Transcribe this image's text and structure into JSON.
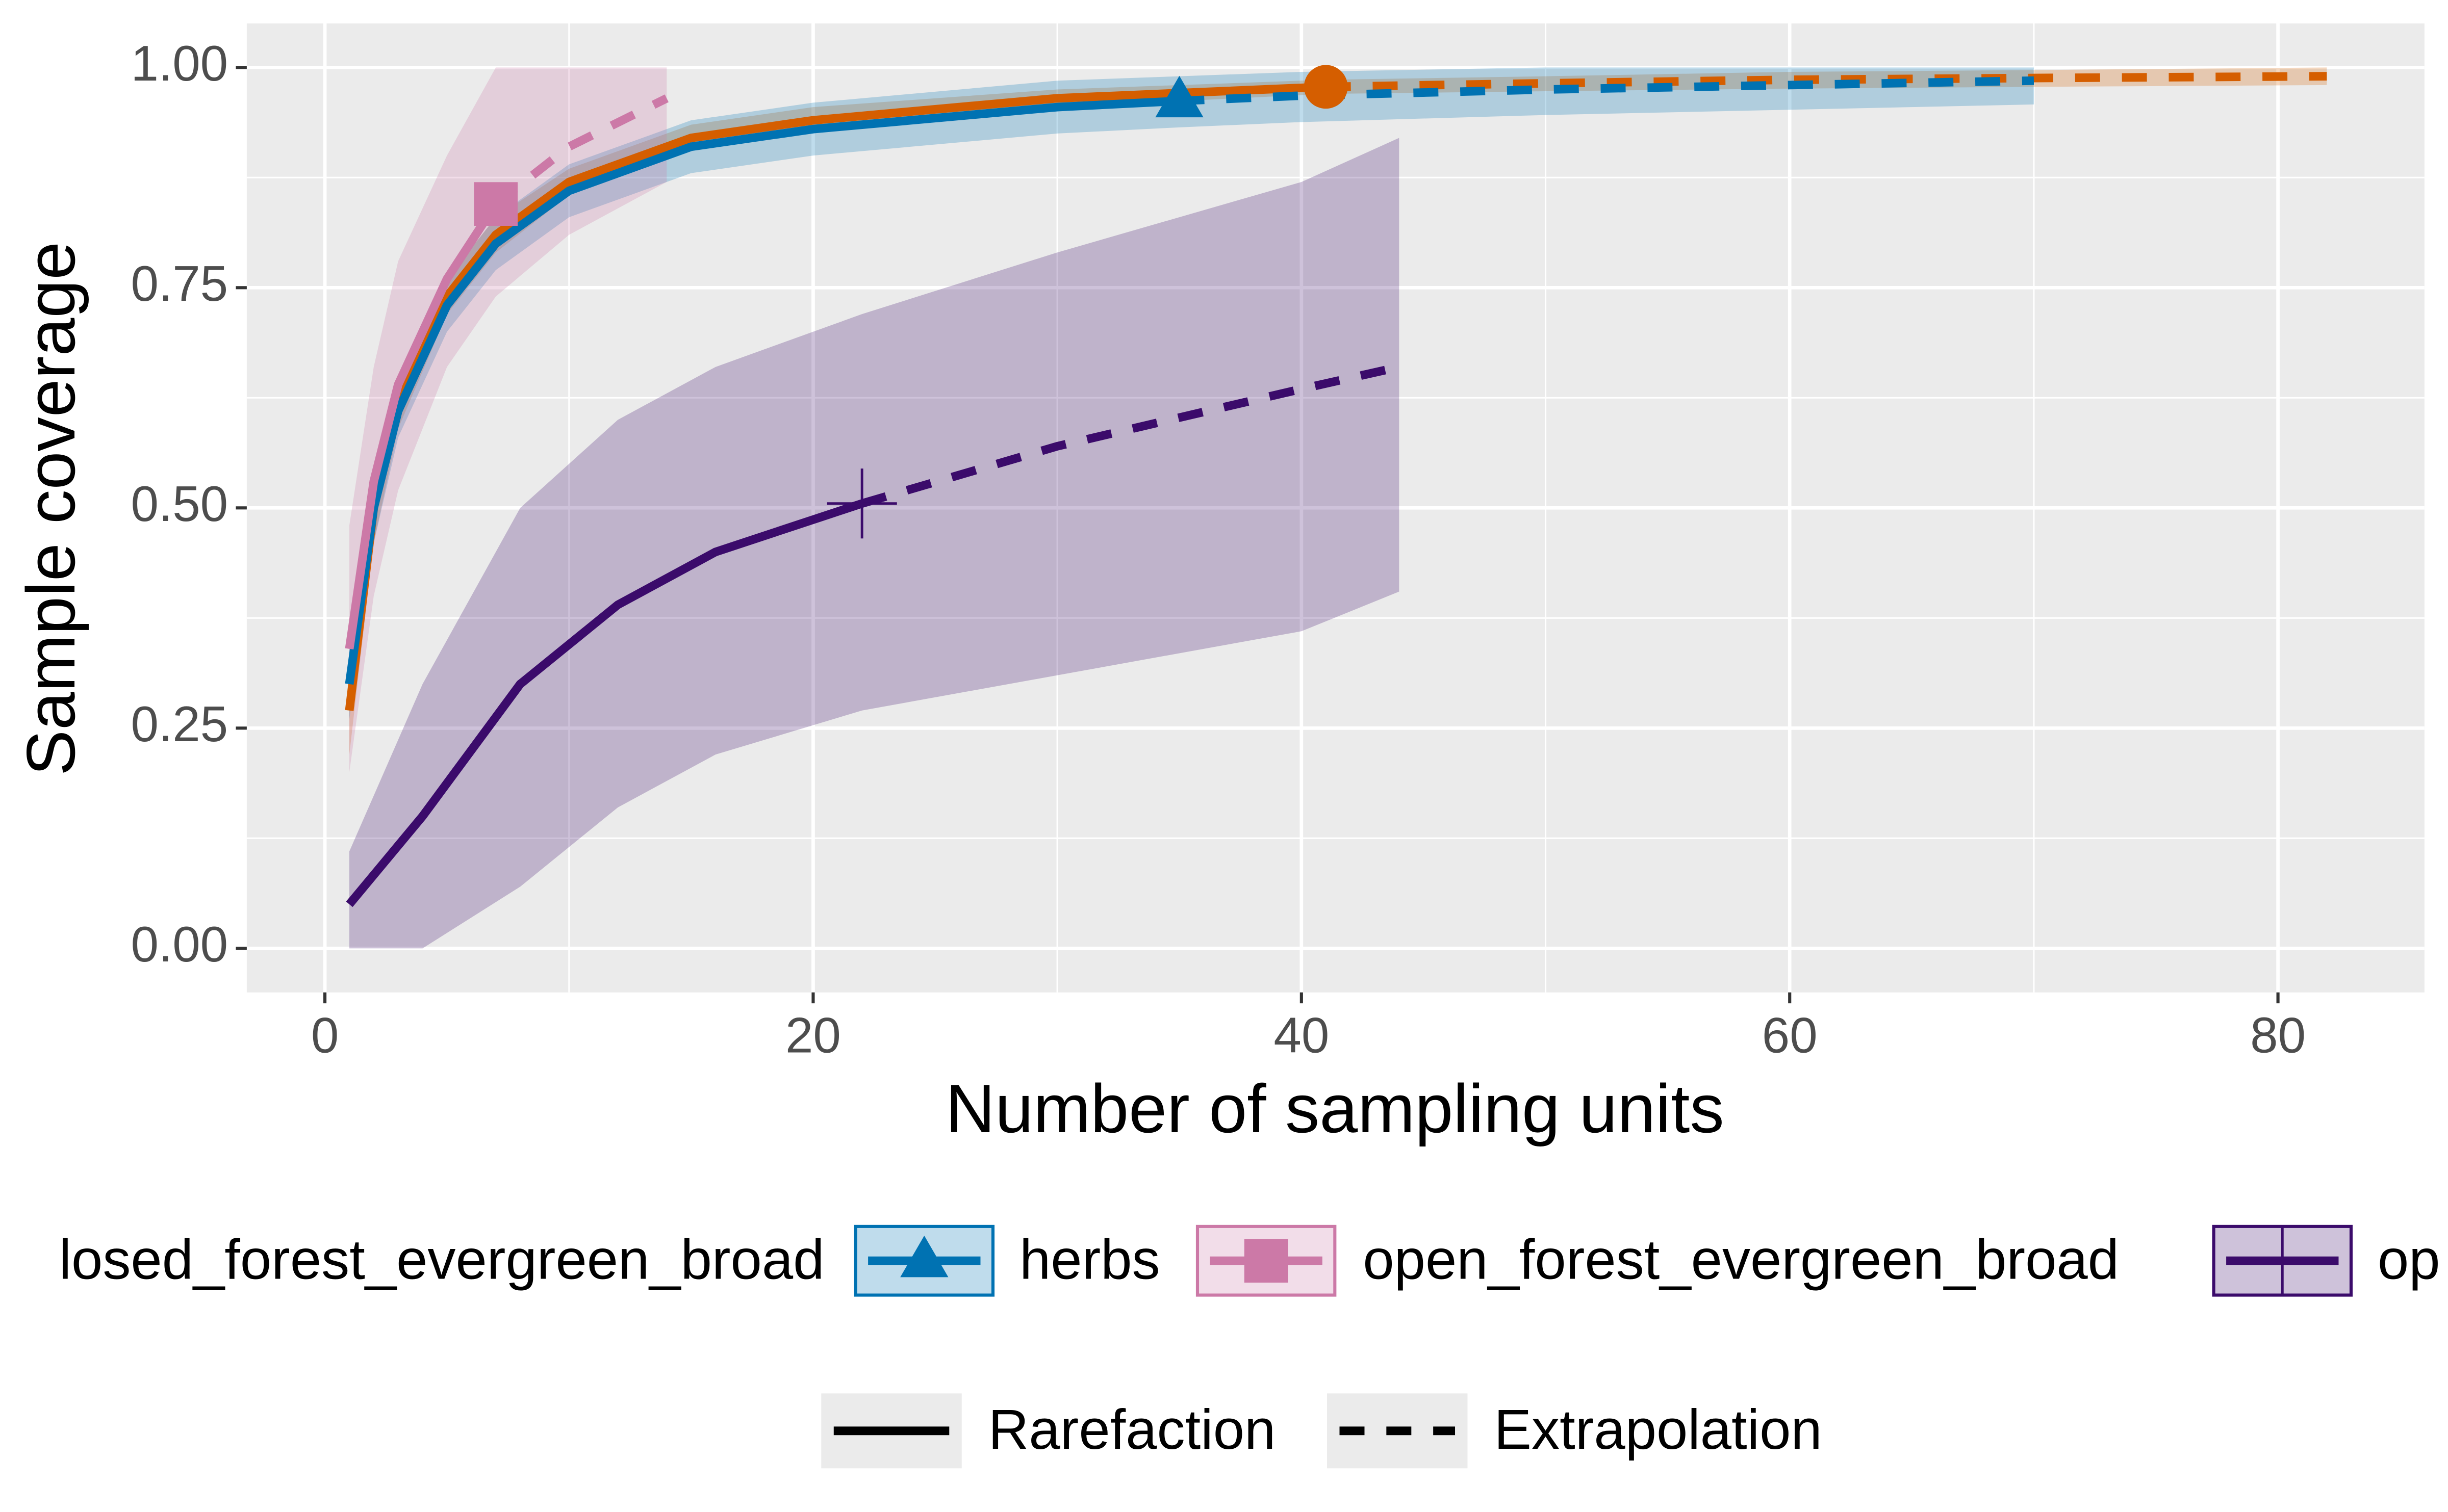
{
  "chart_data": {
    "type": "line",
    "x_label": "Number of sampling units",
    "y_label": "Sample coverage",
    "xlim": [
      -3.2,
      86
    ],
    "ylim": [
      -0.05,
      1.05
    ],
    "xticks": [
      0,
      20,
      40,
      60,
      80
    ],
    "yticks": [
      {
        "value": 0,
        "label": "0.00"
      },
      {
        "value": 0.25,
        "label": "0.25"
      },
      {
        "value": 0.5,
        "label": "0.50"
      },
      {
        "value": 0.75,
        "label": "0.75"
      },
      {
        "value": 1,
        "label": "1.00"
      }
    ],
    "grid": true,
    "legend_position": "bottom",
    "linetype_labels": [
      "Rarefaction",
      "Extrapolation"
    ],
    "series": [
      {
        "name": "losed_forest_evergreen_broad",
        "color": "#D55E00",
        "shape": "circle",
        "observed_x": 41,
        "x": [
          1,
          2,
          3,
          5,
          7,
          10,
          15,
          20,
          30,
          41,
          50,
          60,
          70,
          82
        ],
        "values": [
          0.27,
          0.5,
          0.62,
          0.74,
          0.81,
          0.87,
          0.92,
          0.94,
          0.965,
          0.978,
          0.982,
          0.986,
          0.988,
          0.99
        ],
        "lower": [
          0.22,
          0.46,
          0.59,
          0.72,
          0.79,
          0.855,
          0.905,
          0.93,
          0.955,
          0.97,
          0.973,
          0.976,
          0.978,
          0.98
        ],
        "upper": [
          0.32,
          0.54,
          0.65,
          0.76,
          0.83,
          0.885,
          0.935,
          0.955,
          0.975,
          0.986,
          0.99,
          0.995,
          0.997,
          1.0
        ]
      },
      {
        "name": "herbs",
        "color": "#0072B2",
        "shape": "triangle",
        "observed_x": 35,
        "x": [
          1,
          2,
          3,
          5,
          7,
          10,
          15,
          20,
          30,
          35,
          40,
          50,
          60,
          70
        ],
        "values": [
          0.3,
          0.5,
          0.61,
          0.73,
          0.8,
          0.86,
          0.91,
          0.93,
          0.955,
          0.962,
          0.968,
          0.975,
          0.98,
          0.985
        ],
        "lower": [
          0.26,
          0.46,
          0.58,
          0.7,
          0.77,
          0.83,
          0.88,
          0.9,
          0.925,
          0.932,
          0.938,
          0.946,
          0.952,
          0.958
        ],
        "upper": [
          0.34,
          0.54,
          0.64,
          0.76,
          0.83,
          0.89,
          0.94,
          0.96,
          0.985,
          0.99,
          0.995,
          1.0,
          1.0,
          1.0
        ]
      },
      {
        "name": "open_forest_evergreen_broad",
        "color": "#CC79A7",
        "shape": "square",
        "observed_x": 7,
        "x": [
          1,
          2,
          3,
          5,
          7,
          10,
          14
        ],
        "values": [
          0.34,
          0.53,
          0.64,
          0.76,
          0.845,
          0.91,
          0.965
        ],
        "lower": [
          0.2,
          0.4,
          0.52,
          0.66,
          0.74,
          0.81,
          0.87
        ],
        "upper": [
          0.48,
          0.66,
          0.78,
          0.9,
          1.0,
          1.0,
          1.0
        ]
      },
      {
        "name": "op",
        "color": "#3B0B6B",
        "shape": "cross",
        "observed_x": 22,
        "x": [
          1,
          4,
          8,
          12,
          16,
          22,
          30,
          40,
          44
        ],
        "values": [
          0.05,
          0.15,
          0.3,
          0.39,
          0.45,
          0.505,
          0.57,
          0.635,
          0.66
        ],
        "lower": [
          0,
          0,
          0.07,
          0.16,
          0.22,
          0.27,
          0.31,
          0.36,
          0.405
        ],
        "upper": [
          0.11,
          0.3,
          0.5,
          0.6,
          0.66,
          0.72,
          0.79,
          0.87,
          0.92
        ]
      }
    ]
  }
}
